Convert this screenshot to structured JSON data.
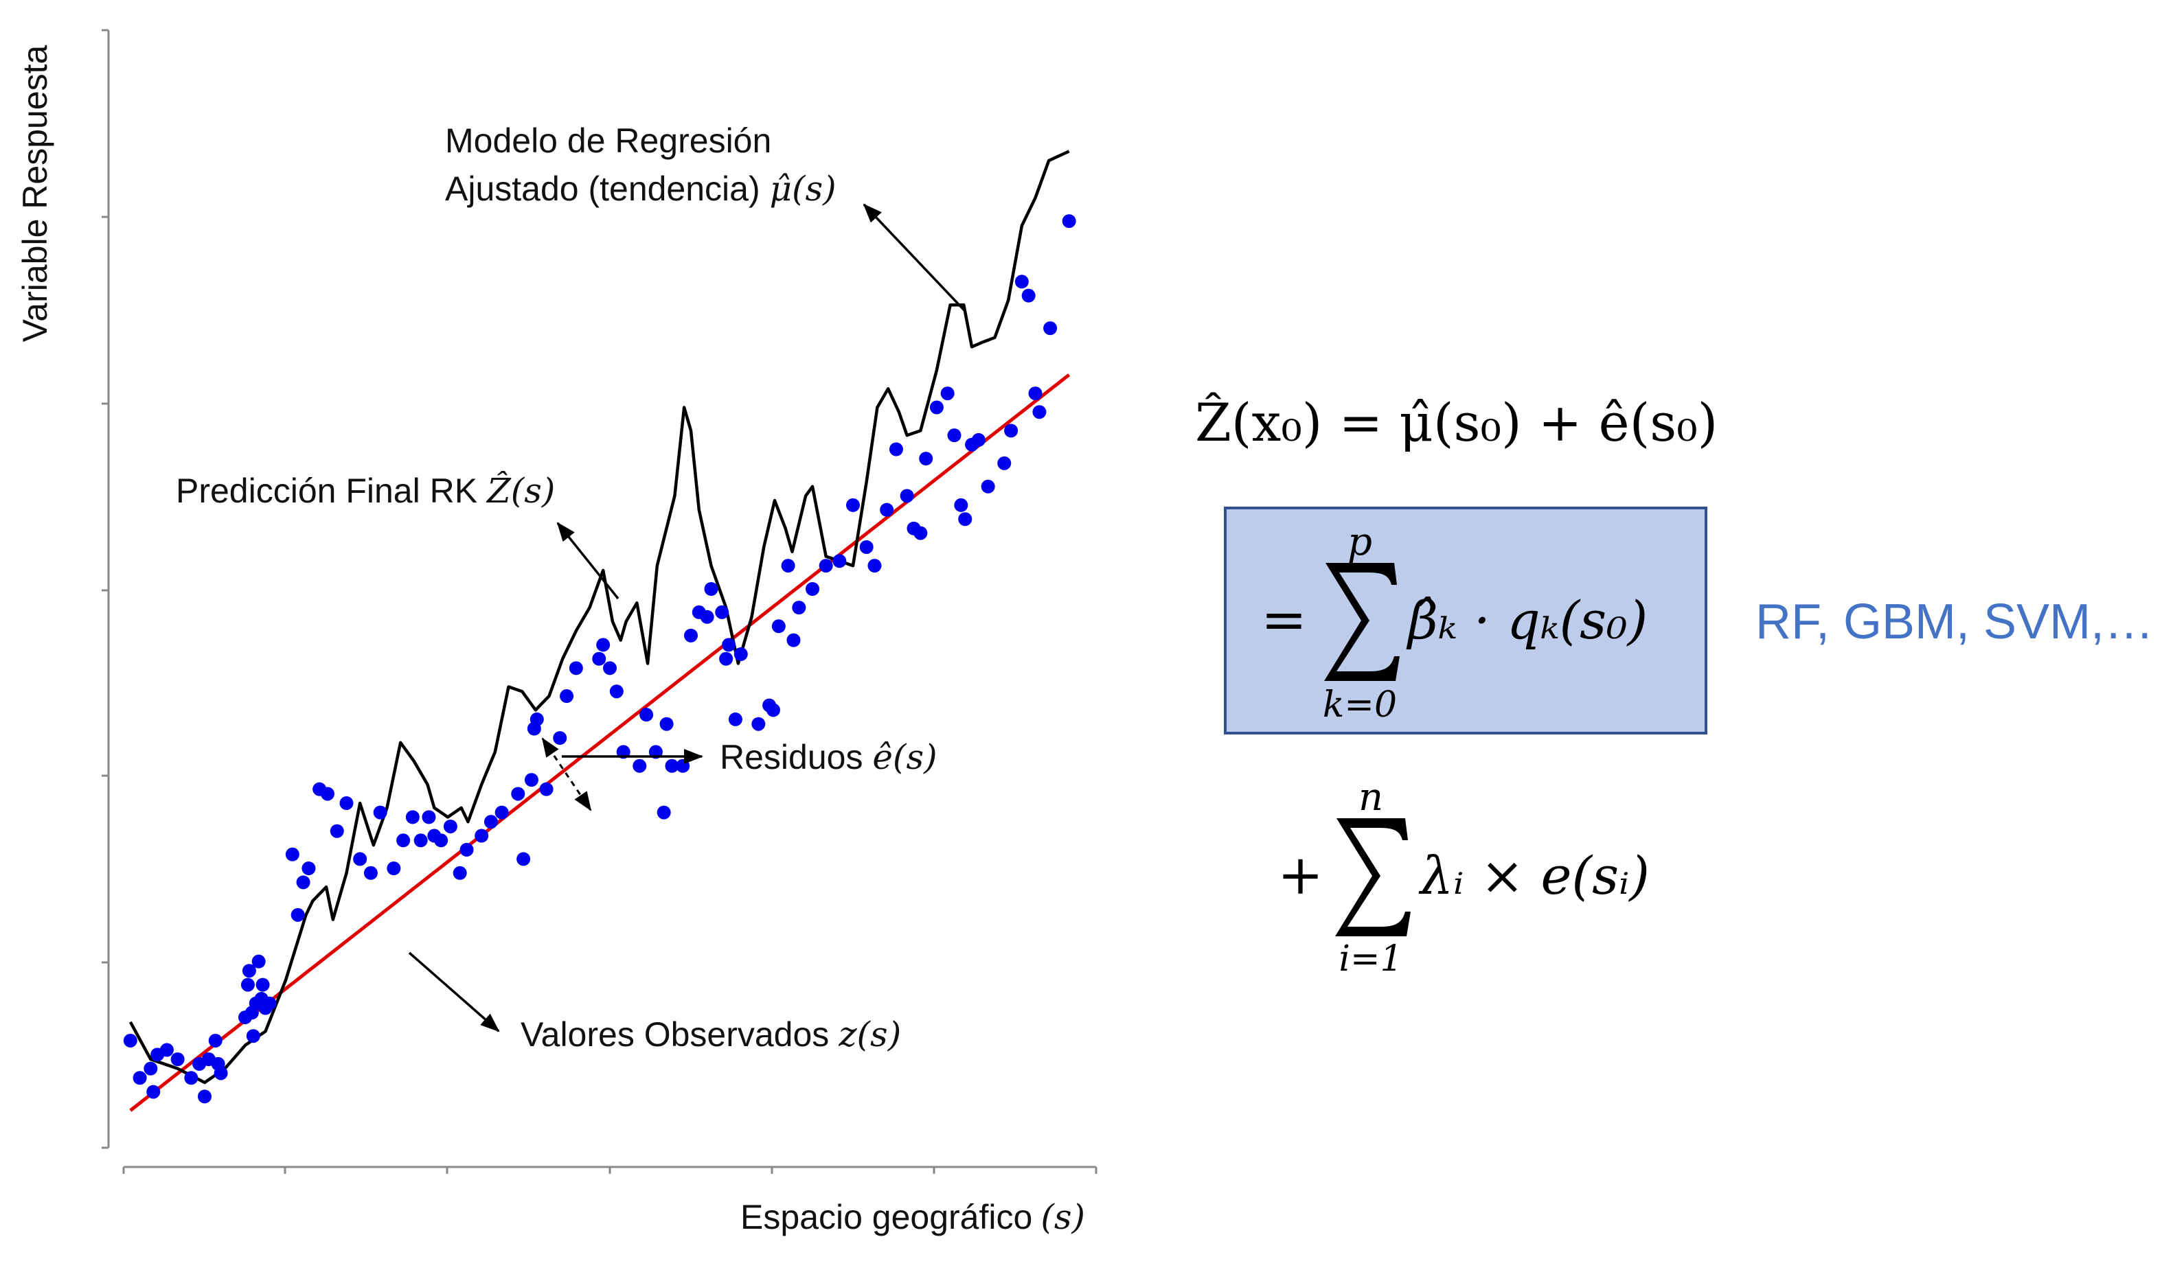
{
  "chart_data": {
    "type": "scatter",
    "xlabel": "Espacio geográfico",
    "xlabel_var": "(s)",
    "ylabel": "Variable Respuesta",
    "grid": false,
    "observed_points": [
      [
        0.5,
        2.3
      ],
      [
        1.2,
        1.5
      ],
      [
        2.0,
        1.7
      ],
      [
        2.2,
        1.2
      ],
      [
        2.5,
        2.0
      ],
      [
        3.2,
        2.1
      ],
      [
        4.0,
        1.9
      ],
      [
        5.0,
        1.5
      ],
      [
        5.6,
        1.8
      ],
      [
        6.0,
        1.1
      ],
      [
        6.3,
        1.9
      ],
      [
        6.8,
        2.3
      ],
      [
        7.0,
        1.8
      ],
      [
        7.2,
        1.6
      ],
      [
        9.0,
        2.8
      ],
      [
        9.2,
        3.5
      ],
      [
        9.3,
        3.8
      ],
      [
        9.5,
        2.9
      ],
      [
        9.6,
        2.4
      ],
      [
        9.8,
        3.1
      ],
      [
        10.0,
        4.0
      ],
      [
        10.2,
        3.2
      ],
      [
        10.3,
        3.5
      ],
      [
        10.5,
        3.0
      ],
      [
        10.8,
        3.1
      ],
      [
        12.5,
        6.3
      ],
      [
        12.9,
        5.0
      ],
      [
        13.3,
        5.7
      ],
      [
        13.7,
        6.0
      ],
      [
        14.5,
        7.7
      ],
      [
        15.1,
        7.6
      ],
      [
        15.8,
        6.8
      ],
      [
        16.5,
        7.4
      ],
      [
        17.5,
        6.2
      ],
      [
        18.3,
        5.9
      ],
      [
        19.0,
        7.2
      ],
      [
        20.0,
        6.0
      ],
      [
        20.7,
        6.6
      ],
      [
        21.4,
        7.1
      ],
      [
        22.0,
        6.6
      ],
      [
        22.6,
        7.1
      ],
      [
        23.0,
        6.7
      ],
      [
        23.5,
        6.6
      ],
      [
        24.2,
        6.9
      ],
      [
        24.9,
        5.9
      ],
      [
        25.4,
        6.4
      ],
      [
        26.5,
        6.7
      ],
      [
        27.2,
        7.0
      ],
      [
        28.0,
        7.2
      ],
      [
        29.2,
        7.6
      ],
      [
        29.6,
        6.2
      ],
      [
        30.2,
        7.9
      ],
      [
        30.4,
        9.0
      ],
      [
        30.6,
        9.2
      ],
      [
        31.3,
        7.7
      ],
      [
        32.3,
        8.8
      ],
      [
        32.8,
        9.7
      ],
      [
        33.5,
        10.3
      ],
      [
        35.2,
        10.5
      ],
      [
        35.5,
        10.8
      ],
      [
        36.0,
        10.3
      ],
      [
        36.5,
        9.8
      ],
      [
        37.0,
        8.5
      ],
      [
        38.2,
        8.2
      ],
      [
        38.7,
        9.3
      ],
      [
        39.4,
        8.5
      ],
      [
        40.0,
        7.2
      ],
      [
        40.2,
        9.1
      ],
      [
        40.6,
        8.2
      ],
      [
        41.4,
        8.2
      ],
      [
        42.0,
        11.0
      ],
      [
        42.6,
        11.5
      ],
      [
        43.2,
        11.4
      ],
      [
        43.5,
        12.0
      ],
      [
        44.3,
        11.5
      ],
      [
        44.6,
        10.5
      ],
      [
        44.8,
        10.8
      ],
      [
        45.3,
        9.2
      ],
      [
        45.7,
        10.6
      ],
      [
        47.0,
        9.1
      ],
      [
        47.8,
        9.5
      ],
      [
        48.1,
        9.4
      ],
      [
        48.5,
        11.2
      ],
      [
        49.2,
        12.5
      ],
      [
        49.6,
        10.9
      ],
      [
        50.0,
        11.6
      ],
      [
        51.0,
        12.0
      ],
      [
        52.0,
        12.5
      ],
      [
        53.0,
        12.6
      ],
      [
        54.0,
        13.8
      ],
      [
        55.0,
        12.9
      ],
      [
        55.6,
        12.5
      ],
      [
        56.5,
        13.7
      ],
      [
        57.2,
        15.0
      ],
      [
        58.0,
        14.0
      ],
      [
        58.5,
        13.3
      ],
      [
        59.0,
        13.2
      ],
      [
        59.4,
        14.8
      ],
      [
        60.2,
        15.9
      ],
      [
        61.0,
        16.2
      ],
      [
        61.5,
        15.3
      ],
      [
        62.0,
        13.8
      ],
      [
        62.3,
        13.5
      ],
      [
        62.8,
        15.1
      ],
      [
        63.3,
        15.2
      ],
      [
        64.0,
        14.2
      ],
      [
        65.2,
        14.7
      ],
      [
        65.7,
        15.4
      ],
      [
        66.5,
        18.6
      ],
      [
        67.0,
        18.3
      ],
      [
        67.5,
        16.2
      ],
      [
        67.8,
        15.8
      ],
      [
        68.6,
        17.6
      ],
      [
        70.0,
        19.9
      ]
    ],
    "trend_line": [
      [
        0.5,
        0.8
      ],
      [
        70.0,
        16.6
      ]
    ],
    "rk_prediction": [
      [
        0.5,
        2.7
      ],
      [
        2.0,
        1.9
      ],
      [
        4.0,
        1.7
      ],
      [
        6.0,
        1.4
      ],
      [
        7.5,
        1.7
      ],
      [
        9.0,
        2.2
      ],
      [
        10.5,
        2.5
      ],
      [
        12.0,
        3.6
      ],
      [
        13.5,
        5.0
      ],
      [
        14.0,
        5.3
      ],
      [
        15.0,
        5.6
      ],
      [
        15.5,
        4.9
      ],
      [
        16.5,
        5.9
      ],
      [
        17.5,
        7.4
      ],
      [
        18.5,
        6.5
      ],
      [
        19.5,
        7.3
      ],
      [
        20.5,
        8.7
      ],
      [
        21.5,
        8.3
      ],
      [
        22.5,
        7.8
      ],
      [
        23.0,
        7.3
      ],
      [
        24.0,
        7.1
      ],
      [
        25.0,
        7.3
      ],
      [
        25.5,
        7.0
      ],
      [
        26.5,
        7.8
      ],
      [
        27.5,
        8.5
      ],
      [
        28.5,
        9.9
      ],
      [
        29.5,
        9.8
      ],
      [
        30.5,
        9.4
      ],
      [
        31.5,
        9.7
      ],
      [
        32.5,
        10.5
      ],
      [
        33.5,
        11.1
      ],
      [
        34.5,
        11.6
      ],
      [
        35.5,
        12.4
      ],
      [
        36.2,
        11.3
      ],
      [
        36.8,
        10.9
      ],
      [
        37.2,
        11.3
      ],
      [
        38.0,
        11.7
      ],
      [
        38.8,
        10.4
      ],
      [
        39.5,
        12.5
      ],
      [
        40.8,
        14.0
      ],
      [
        41.5,
        15.9
      ],
      [
        42.0,
        15.4
      ],
      [
        42.6,
        13.7
      ],
      [
        43.5,
        12.5
      ],
      [
        44.6,
        11.6
      ],
      [
        45.5,
        10.4
      ],
      [
        46.5,
        11.4
      ],
      [
        47.4,
        12.9
      ],
      [
        48.2,
        13.9
      ],
      [
        49.0,
        13.3
      ],
      [
        49.5,
        12.8
      ],
      [
        50.5,
        14.0
      ],
      [
        51.0,
        14.2
      ],
      [
        52.0,
        12.7
      ],
      [
        53.0,
        12.6
      ],
      [
        54.0,
        12.5
      ],
      [
        55.0,
        14.3
      ],
      [
        55.8,
        15.9
      ],
      [
        56.6,
        16.3
      ],
      [
        57.4,
        15.8
      ],
      [
        58.0,
        15.3
      ],
      [
        59.0,
        15.4
      ],
      [
        60.2,
        16.7
      ],
      [
        61.2,
        18.1
      ],
      [
        62.2,
        18.1
      ],
      [
        62.8,
        17.2
      ],
      [
        63.6,
        17.3
      ],
      [
        64.5,
        17.4
      ],
      [
        65.5,
        18.2
      ],
      [
        66.5,
        19.8
      ],
      [
        67.5,
        20.4
      ],
      [
        68.5,
        21.2
      ],
      [
        70.0,
        21.4
      ]
    ],
    "rk_prediction_note": "",
    "ylim": [
      0,
      24
    ],
    "xlim": [
      0,
      72
    ]
  },
  "labels": {
    "trend_line1": "Modelo de Regresión",
    "trend_line2": "Ajustado (tendencia) ",
    "trend_math": "μ̂(s)",
    "rk": "Predicción Final RK ",
    "rk_math": "Ẑ(s)",
    "residuals": "Residuos ",
    "residuals_math": "ê(s)",
    "observed": "Valores Observados ",
    "observed_math": "z(s)"
  },
  "equation": {
    "line1": "Ẑ(x₀) = μ̂(s₀) + ê(s₀)",
    "box_prefix": "=",
    "box_sum_upper": "p",
    "box_sum_lower": "k=0",
    "box_term": "β̂ₖ · qₖ(s₀)",
    "line3_prefix": "+",
    "line3_sum_upper": "n",
    "line3_sum_lower": "i=1",
    "line3_term": "λᵢ × e(sᵢ)",
    "box_fill": "#BDCCEA",
    "box_stroke": "#2F528F"
  },
  "ml_methods": "RF, GBM, SVM,…",
  "colors": {
    "points": "#0000EE",
    "trend": "#E00000",
    "rk": "#000000",
    "ml_text": "#4472C4"
  }
}
